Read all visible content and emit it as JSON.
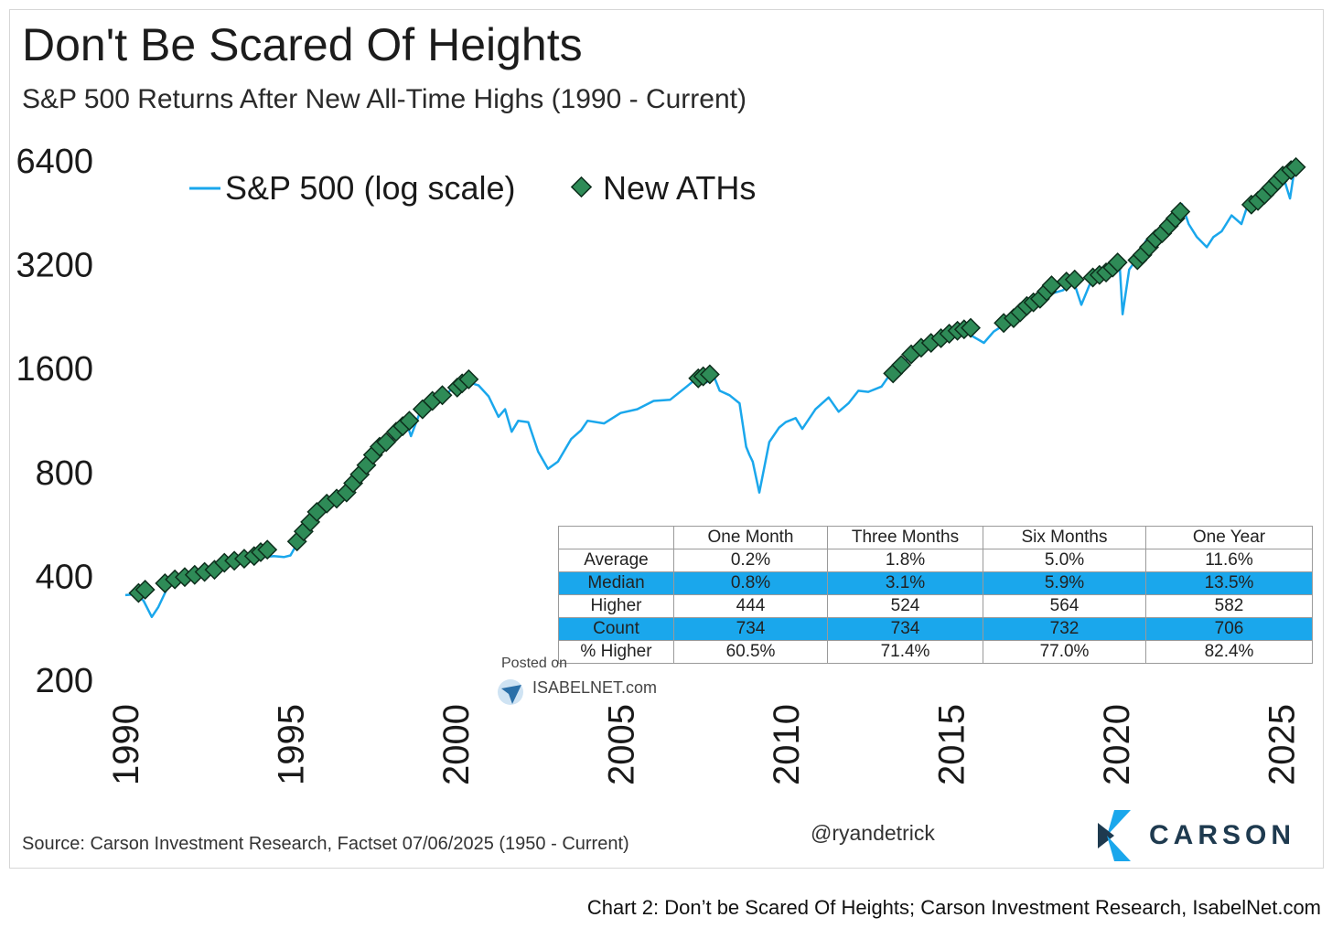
{
  "chart_data": {
    "type": "line",
    "title": "Don't Be Scared Of Heights",
    "subtitle": "S&P 500 Returns After New All-Time Highs (1990 - Current)",
    "y_scale": "log",
    "ylim": [
      200,
      6400
    ],
    "y_ticks": [
      "6400",
      "3200",
      "1600",
      "800",
      "400",
      "200"
    ],
    "y_tick_values": [
      6400,
      3200,
      1600,
      800,
      400,
      200
    ],
    "xlim": [
      1990,
      2025.6
    ],
    "x_ticks": [
      "1990",
      "1995",
      "2000",
      "2005",
      "2010",
      "2015",
      "2020",
      "2025"
    ],
    "x_tick_values": [
      1990,
      1995,
      2000,
      2005,
      2010,
      2015,
      2020,
      2025
    ],
    "legend": {
      "line_label": "S&P 500 (log scale)",
      "marker_label": "New ATHs",
      "placement": "top-left"
    },
    "colors": {
      "line": "#1aa7ec",
      "marker_fill": "#2e8b57",
      "marker_stroke": "#0d2e1c",
      "table_highlight": "#1aa7ec"
    },
    "series": [
      {
        "name": "S&P 500 (log scale)",
        "x": [
          1990.0,
          1990.3,
          1990.55,
          1990.8,
          1991.0,
          1991.3,
          1991.6,
          1992.0,
          1992.5,
          1993.0,
          1993.5,
          1994.0,
          1994.2,
          1994.5,
          1994.8,
          1995.0,
          1995.5,
          1996.0,
          1996.5,
          1997.0,
          1997.5,
          1997.8,
          1998.0,
          1998.5,
          1998.65,
          1998.9,
          1999.2,
          1999.5,
          1999.8,
          2000.0,
          2000.25,
          2000.5,
          2000.7,
          2001.0,
          2001.3,
          2001.5,
          2001.7,
          2001.9,
          2002.2,
          2002.5,
          2002.8,
          2003.1,
          2003.5,
          2003.8,
          2004.0,
          2004.5,
          2005.0,
          2005.5,
          2006.0,
          2006.5,
          2007.0,
          2007.3,
          2007.6,
          2007.8,
          2008.0,
          2008.3,
          2008.6,
          2008.8,
          2008.9,
          2009.0,
          2009.2,
          2009.5,
          2009.8,
          2010.0,
          2010.3,
          2010.5,
          2010.9,
          2011.3,
          2011.6,
          2011.9,
          2012.2,
          2012.5,
          2012.9,
          2013.2,
          2013.5,
          2014.0,
          2014.5,
          2015.0,
          2015.3,
          2015.6,
          2016.0,
          2016.3,
          2016.8,
          2017.2,
          2017.6,
          2018.0,
          2018.1,
          2018.4,
          2018.7,
          2018.95,
          2019.2,
          2019.6,
          2019.9,
          2020.1,
          2020.2,
          2020.4,
          2020.7,
          2020.9,
          2021.2,
          2021.6,
          2022.0,
          2022.2,
          2022.45,
          2022.75,
          2022.95,
          2023.2,
          2023.5,
          2023.8,
          2024.0,
          2024.4,
          2024.8,
          2025.0,
          2025.1,
          2025.27,
          2025.4,
          2025.5
        ],
        "values": [
          353,
          355,
          340,
          305,
          326,
          375,
          387,
          412,
          415,
          438,
          450,
          470,
          455,
          458,
          455,
          460,
          560,
          615,
          670,
          740,
          920,
          950,
          980,
          1130,
          1020,
          1180,
          1280,
          1340,
          1370,
          1440,
          1500,
          1450,
          1430,
          1330,
          1160,
          1220,
          1050,
          1130,
          1120,
          920,
          820,
          860,
          1000,
          1060,
          1130,
          1110,
          1190,
          1220,
          1290,
          1300,
          1420,
          1500,
          1460,
          1540,
          1380,
          1340,
          1270,
          950,
          900,
          860,
          700,
          980,
          1080,
          1120,
          1150,
          1070,
          1220,
          1320,
          1200,
          1270,
          1380,
          1370,
          1420,
          1560,
          1650,
          1800,
          1960,
          2060,
          2080,
          2000,
          1900,
          2050,
          2200,
          2380,
          2480,
          2760,
          2650,
          2700,
          2900,
          2450,
          2800,
          3000,
          3230,
          3330,
          2300,
          3100,
          3400,
          3750,
          3950,
          4350,
          4790,
          4200,
          3850,
          3600,
          3850,
          4000,
          4450,
          4200,
          4800,
          5250,
          5700,
          6000,
          5620,
          4980,
          6000,
          6250
        ]
      },
      {
        "name": "New ATHs",
        "x": [
          1990.4,
          1990.6,
          1991.2,
          1991.5,
          1991.8,
          1992.1,
          1992.4,
          1992.7,
          1993.0,
          1993.3,
          1993.6,
          1993.9,
          1994.1,
          1994.3,
          1995.2,
          1995.4,
          1995.6,
          1995.8,
          1996.1,
          1996.4,
          1996.7,
          1996.9,
          1997.1,
          1997.3,
          1997.5,
          1997.7,
          1997.9,
          1998.2,
          1998.4,
          1998.6,
          1999.0,
          1999.3,
          1999.6,
          2000.05,
          2000.2,
          2000.4,
          2007.35,
          2007.5,
          2007.7,
          2013.25,
          2013.5,
          2013.8,
          2014.1,
          2014.4,
          2014.7,
          2014.95,
          2015.2,
          2015.4,
          2015.6,
          2016.6,
          2016.9,
          2017.1,
          2017.3,
          2017.5,
          2017.7,
          2017.9,
          2018.05,
          2018.5,
          2018.75,
          2019.3,
          2019.5,
          2019.7,
          2019.9,
          2020.05,
          2020.65,
          2020.8,
          2021.0,
          2021.2,
          2021.4,
          2021.6,
          2021.8,
          2021.95,
          2024.1,
          2024.3,
          2024.5,
          2024.7,
          2024.9,
          2025.05,
          2025.3,
          2025.45
        ],
        "values": [
          358,
          366,
          382,
          392,
          398,
          404,
          412,
          418,
          438,
          444,
          450,
          458,
          470,
          478,
          505,
          540,
          575,
          615,
          650,
          672,
          700,
          745,
          790,
          840,
          900,
          950,
          980,
          1050,
          1090,
          1130,
          1220,
          1290,
          1340,
          1410,
          1450,
          1490,
          1500,
          1520,
          1540,
          1550,
          1640,
          1760,
          1840,
          1900,
          1960,
          2020,
          2060,
          2080,
          2100,
          2170,
          2240,
          2330,
          2430,
          2490,
          2550,
          2680,
          2790,
          2860,
          2900,
          2940,
          2990,
          3040,
          3140,
          3250,
          3300,
          3420,
          3600,
          3800,
          3950,
          4150,
          4360,
          4560,
          4780,
          4900,
          5110,
          5350,
          5600,
          5800,
          6020,
          6140
        ]
      }
    ]
  },
  "table": {
    "headers": [
      "",
      "One Month",
      "Three Months",
      "Six Months",
      "One Year"
    ],
    "rows": [
      {
        "label": "Average",
        "values": [
          "0.2%",
          "1.8%",
          "5.0%",
          "11.6%"
        ]
      },
      {
        "label": "Median",
        "values": [
          "0.8%",
          "3.1%",
          "5.9%",
          "13.5%"
        ]
      },
      {
        "label": "Higher",
        "values": [
          "444",
          "524",
          "564",
          "582"
        ]
      },
      {
        "label": "Count",
        "values": [
          "734",
          "734",
          "732",
          "706"
        ]
      },
      {
        "label": "% Higher",
        "values": [
          "60.5%",
          "71.4%",
          "77.0%",
          "82.4%"
        ]
      }
    ]
  },
  "watermark": {
    "posted": "Posted on",
    "site": "ISABELNET.com"
  },
  "source": "Source: Carson Investment Research, Factset 07/06/2025 (1950 - Current)",
  "handle": "@ryandetrick",
  "brand": "CARSON",
  "caption": "Chart 2: Don’t be Scared Of Heights; Carson Investment Research, IsabelNet.com"
}
